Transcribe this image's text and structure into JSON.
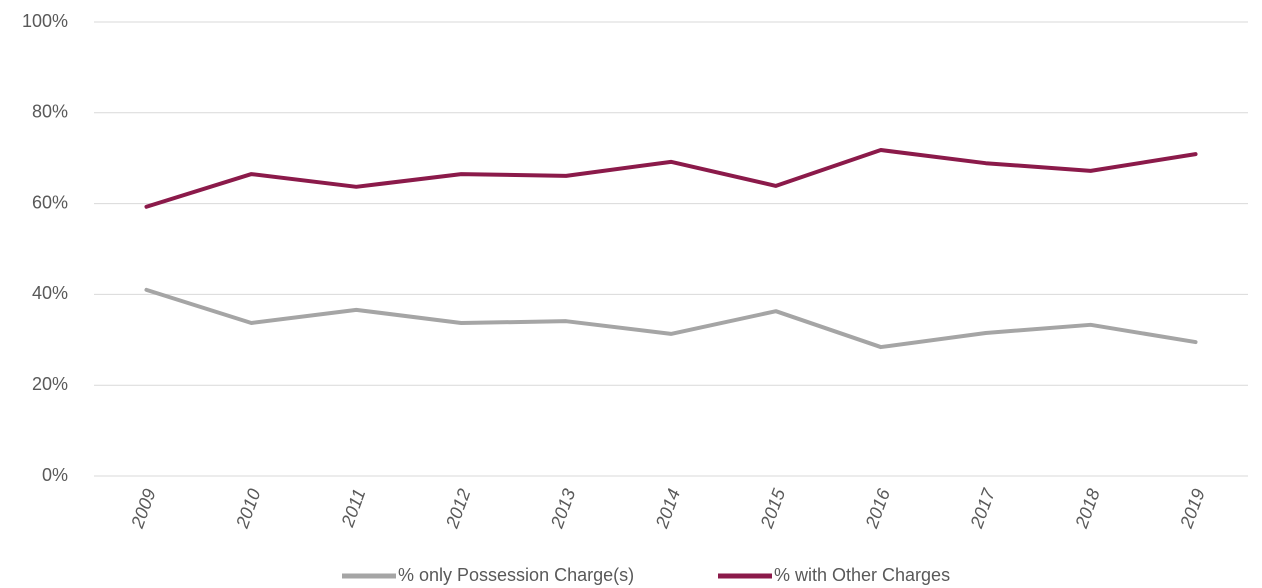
{
  "chart_data": {
    "type": "line",
    "categories": [
      "2009",
      "2010",
      "2011",
      "2012",
      "2013",
      "2014",
      "2015",
      "2016",
      "2017",
      "2018",
      "2019"
    ],
    "series": [
      {
        "name": "% only Possession Charge(s)",
        "color": "#a5a5a5",
        "values": [
          41.0,
          33.7,
          36.6,
          33.7,
          34.1,
          31.3,
          36.3,
          28.4,
          31.5,
          33.3,
          29.5
        ]
      },
      {
        "name": "% with Other Charges",
        "color": "#8b1a4a",
        "values": [
          59.3,
          66.5,
          63.7,
          66.5,
          66.1,
          69.2,
          63.9,
          71.8,
          68.9,
          67.2,
          70.9
        ]
      }
    ],
    "ylim": [
      0,
      100
    ],
    "yticks": [
      {
        "value": 0,
        "label": "0%"
      },
      {
        "value": 20,
        "label": "20%"
      },
      {
        "value": 40,
        "label": "40%"
      },
      {
        "value": 60,
        "label": "60%"
      },
      {
        "value": 80,
        "label": "80%"
      },
      {
        "value": 100,
        "label": "100%"
      }
    ],
    "grid": true,
    "legend": "bottom"
  }
}
